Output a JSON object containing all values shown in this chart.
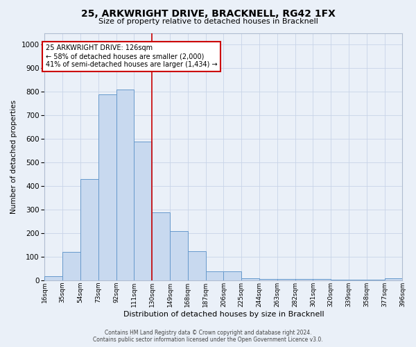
{
  "title": "25, ARKWRIGHT DRIVE, BRACKNELL, RG42 1FX",
  "subtitle": "Size of property relative to detached houses in Bracknell",
  "xlabel": "Distribution of detached houses by size in Bracknell",
  "ylabel": "Number of detached properties",
  "annotation_line1": "25 ARKWRIGHT DRIVE: 126sqm",
  "annotation_line2": "← 58% of detached houses are smaller (2,000)",
  "annotation_line3": "41% of semi-detached houses are larger (1,434) →",
  "footer_line1": "Contains HM Land Registry data © Crown copyright and database right 2024.",
  "footer_line2": "Contains public sector information licensed under the Open Government Licence v3.0.",
  "bar_color": "#c8d9ef",
  "bar_edge_color": "#6699cc",
  "background_color": "#eaf0f8",
  "vline_x": 130,
  "vline_color": "#cc0000",
  "bin_edges": [
    16,
    35,
    54,
    73,
    92,
    111,
    130,
    149,
    168,
    187,
    206,
    225,
    244,
    263,
    282,
    301,
    320,
    339,
    358,
    377,
    396
  ],
  "bar_heights": [
    18,
    120,
    430,
    790,
    810,
    590,
    290,
    210,
    125,
    40,
    40,
    8,
    5,
    5,
    5,
    5,
    3,
    3,
    3,
    10
  ],
  "tick_labels": [
    "16sqm",
    "35sqm",
    "54sqm",
    "73sqm",
    "92sqm",
    "111sqm",
    "130sqm",
    "149sqm",
    "168sqm",
    "187sqm",
    "206sqm",
    "225sqm",
    "244sqm",
    "263sqm",
    "282sqm",
    "301sqm",
    "320sqm",
    "339sqm",
    "358sqm",
    "377sqm",
    "396sqm"
  ],
  "ylim": [
    0,
    1050
  ],
  "yticks": [
    0,
    100,
    200,
    300,
    400,
    500,
    600,
    700,
    800,
    900,
    1000
  ],
  "box_color": "#cc0000",
  "grid_color": "#c8d4e8"
}
